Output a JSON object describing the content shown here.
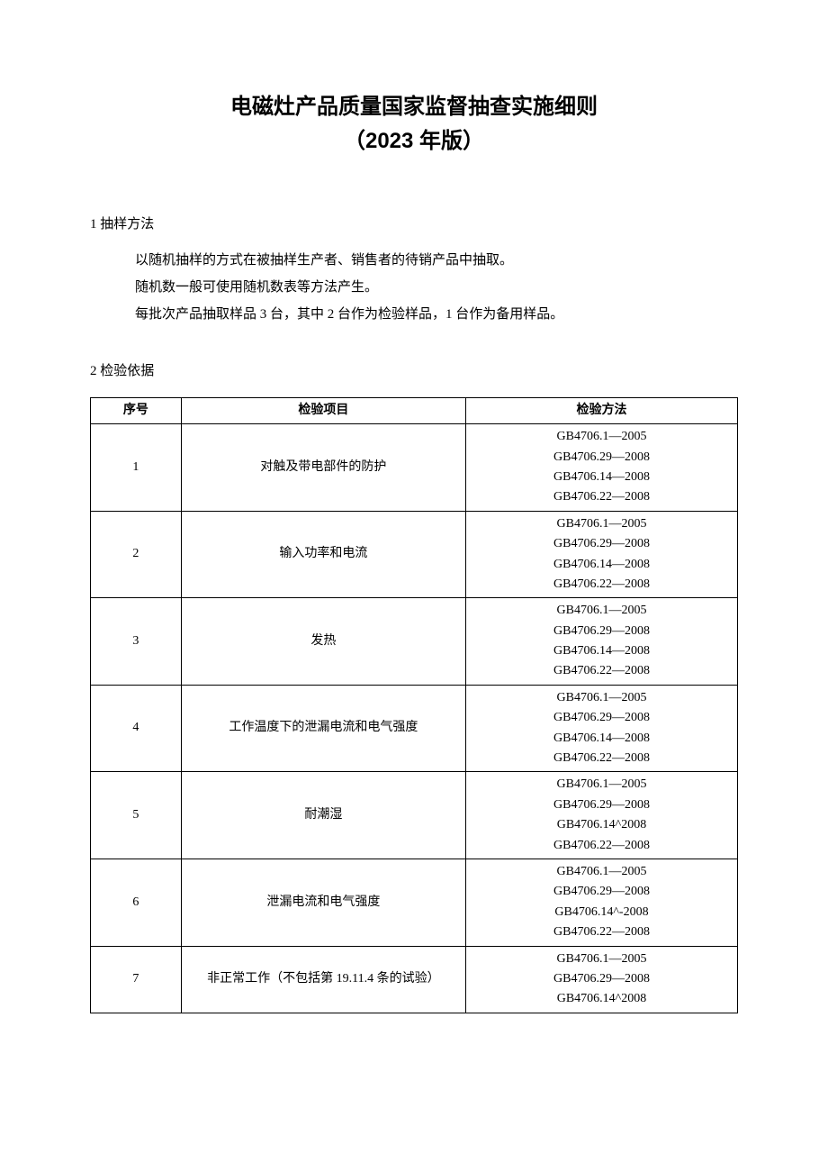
{
  "title": {
    "line1": "电磁灶产品质量国家监督抽查实施细则",
    "line2": "（2023 年版）"
  },
  "section1": {
    "heading": "1 抽样方法",
    "paras": [
      "以随机抽样的方式在被抽样生产者、销售者的待销产品中抽取。",
      "随机数一般可使用随机数表等方法产生。",
      "每批次产品抽取样品 3 台，其中 2 台作为检验样品，1 台作为备用样品。"
    ]
  },
  "section2": {
    "heading": "2 检验依据"
  },
  "table": {
    "columns": [
      "序号",
      "检验项目",
      "检验方法"
    ],
    "rows": [
      {
        "seq": "1",
        "item": "对触及带电部件的防护",
        "methods": [
          "GB4706.1—2005",
          "GB4706.29—2008",
          "GB4706.14—2008",
          "GB4706.22—2008"
        ]
      },
      {
        "seq": "2",
        "item": "输入功率和电流",
        "methods": [
          "GB4706.1—2005",
          "GB4706.29—2008",
          "GB4706.14—2008",
          "GB4706.22—2008"
        ]
      },
      {
        "seq": "3",
        "item": "发热",
        "methods": [
          "GB4706.1—2005",
          "GB4706.29—2008",
          "GB4706.14—2008",
          "GB4706.22—2008"
        ]
      },
      {
        "seq": "4",
        "item": "工作温度下的泄漏电流和电气强度",
        "methods": [
          "GB4706.1—2005",
          "GB4706.29—2008",
          "GB4706.14—2008",
          "GB4706.22—2008"
        ]
      },
      {
        "seq": "5",
        "item": "耐潮湿",
        "methods": [
          "GB4706.1—2005",
          "GB4706.29—2008",
          "GB4706.14^2008",
          "GB4706.22—2008"
        ]
      },
      {
        "seq": "6",
        "item": "泄漏电流和电气强度",
        "methods": [
          "GB4706.1—2005",
          "GB4706.29—2008",
          "GB4706.14^-2008",
          "GB4706.22—2008"
        ]
      },
      {
        "seq": "7",
        "item": "非正常工作（不包括第 19.11.4 条的试验）",
        "methods": [
          "GB4706.1—2005",
          "GB4706.29—2008",
          "GB4706.14^2008"
        ]
      }
    ]
  },
  "style": {
    "page_bg": "#ffffff",
    "text_color": "#000000",
    "border_color": "#000000",
    "title_fontsize_pt": 18,
    "body_fontsize_pt": 11,
    "table_fontsize_pt": 10
  }
}
